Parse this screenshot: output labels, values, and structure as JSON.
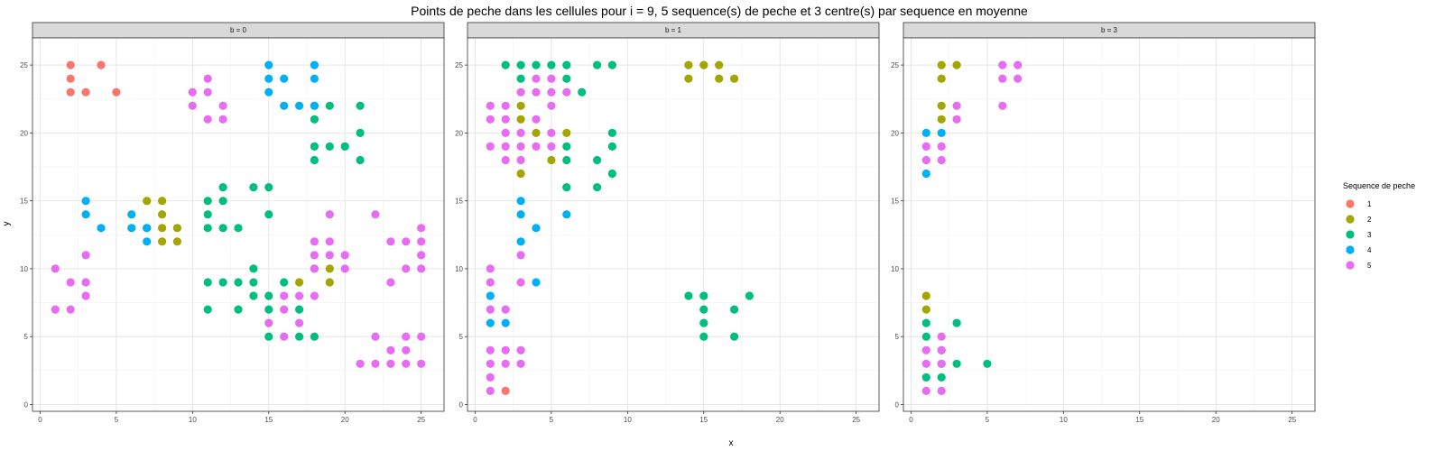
{
  "chart_data": {
    "type": "scatter",
    "title": "Points de peche dans les cellules pour i = 9, 5 sequence(s) de peche et 3 centre(s) par sequence en moyenne",
    "xlabel": "x",
    "ylabel": "y",
    "xlim": [
      -0.5,
      26.5
    ],
    "ylim": [
      -0.5,
      27
    ],
    "xticks": [
      0,
      5,
      10,
      15,
      20,
      25
    ],
    "yticks": [
      0,
      5,
      10,
      15,
      20,
      25
    ],
    "grid": true,
    "legend": {
      "title": "Sequence de peche",
      "position": "right",
      "entries": [
        {
          "label": "1",
          "color": "#F8766D"
        },
        {
          "label": "2",
          "color": "#A3A500"
        },
        {
          "label": "3",
          "color": "#00BF7D"
        },
        {
          "label": "4",
          "color": "#00B0F6"
        },
        {
          "label": "5",
          "color": "#E76BF3"
        }
      ]
    },
    "facets": [
      {
        "label": "b = 0",
        "series": {
          "1": [
            [
              2,
              25
            ],
            [
              4,
              25
            ],
            [
              2,
              24
            ],
            [
              2,
              23
            ],
            [
              3,
              23
            ],
            [
              5,
              23
            ]
          ],
          "2": [
            [
              7,
              15
            ],
            [
              8,
              15
            ],
            [
              8,
              14
            ],
            [
              7,
              13
            ],
            [
              8,
              13
            ],
            [
              9,
              13
            ],
            [
              8,
              12
            ],
            [
              9,
              12
            ],
            [
              17,
              9
            ],
            [
              19,
              10
            ],
            [
              18,
              10
            ],
            [
              19,
              9
            ]
          ],
          "3": [
            [
              18,
              22
            ],
            [
              19,
              22
            ],
            [
              21,
              22
            ],
            [
              18,
              21
            ],
            [
              21,
              20
            ],
            [
              18,
              19
            ],
            [
              19,
              19
            ],
            [
              20,
              19
            ],
            [
              18,
              18
            ],
            [
              21,
              18
            ],
            [
              12,
              16
            ],
            [
              14,
              16
            ],
            [
              15,
              16
            ],
            [
              11,
              15
            ],
            [
              12,
              15
            ],
            [
              11,
              14
            ],
            [
              15,
              14
            ],
            [
              11,
              13
            ],
            [
              12,
              13
            ],
            [
              13,
              13
            ],
            [
              14,
              10
            ],
            [
              11,
              9
            ],
            [
              12,
              9
            ],
            [
              13,
              9
            ],
            [
              14,
              9
            ],
            [
              16,
              9
            ],
            [
              14,
              8
            ],
            [
              15,
              8
            ],
            [
              11,
              7
            ],
            [
              13,
              7
            ],
            [
              15,
              7
            ],
            [
              17,
              7
            ],
            [
              15,
              5
            ],
            [
              17,
              5
            ],
            [
              18,
              5
            ]
          ],
          "4": [
            [
              15,
              25
            ],
            [
              18,
              25
            ],
            [
              15,
              24
            ],
            [
              16,
              24
            ],
            [
              18,
              24
            ],
            [
              15,
              23
            ],
            [
              16,
              22
            ],
            [
              17,
              22
            ],
            [
              18,
              22
            ],
            [
              3,
              15
            ],
            [
              3,
              14
            ],
            [
              4,
              13
            ],
            [
              6,
              14
            ],
            [
              6,
              13
            ],
            [
              7,
              13
            ],
            [
              7,
              12
            ]
          ],
          "5": [
            [
              11,
              24
            ],
            [
              10,
              23
            ],
            [
              11,
              23
            ],
            [
              10,
              22
            ],
            [
              12,
              22
            ],
            [
              11,
              21
            ],
            [
              12,
              21
            ],
            [
              19,
              14
            ],
            [
              22,
              14
            ],
            [
              25,
              13
            ],
            [
              18,
              12
            ],
            [
              19,
              12
            ],
            [
              23,
              12
            ],
            [
              24,
              12
            ],
            [
              25,
              12
            ],
            [
              18,
              11
            ],
            [
              19,
              11
            ],
            [
              20,
              11
            ],
            [
              25,
              11
            ],
            [
              3,
              11
            ],
            [
              1,
              10
            ],
            [
              18,
              10
            ],
            [
              20,
              10
            ],
            [
              24,
              10
            ],
            [
              25,
              10
            ],
            [
              2,
              9
            ],
            [
              3,
              9
            ],
            [
              23,
              9
            ],
            [
              3,
              8
            ],
            [
              16,
              8
            ],
            [
              17,
              8
            ],
            [
              18,
              8
            ],
            [
              1,
              7
            ],
            [
              2,
              7
            ],
            [
              16,
              7
            ],
            [
              17,
              6
            ],
            [
              15,
              6
            ],
            [
              16,
              5
            ],
            [
              22,
              5
            ],
            [
              24,
              5
            ],
            [
              25,
              5
            ],
            [
              23,
              4
            ],
            [
              24,
              4
            ],
            [
              21,
              3
            ],
            [
              22,
              3
            ],
            [
              23,
              3
            ],
            [
              24,
              3
            ],
            [
              25,
              3
            ]
          ]
        }
      },
      {
        "label": "b = 1",
        "series": {
          "1": [
            [
              2,
              1
            ]
          ],
          "2": [
            [
              14,
              25
            ],
            [
              15,
              25
            ],
            [
              16,
              25
            ],
            [
              14,
              24
            ],
            [
              16,
              24
            ],
            [
              17,
              24
            ],
            [
              3,
              22
            ],
            [
              3,
              21
            ],
            [
              4,
              20
            ],
            [
              6,
              20
            ],
            [
              5,
              18
            ],
            [
              3,
              17
            ]
          ],
          "3": [
            [
              2,
              25
            ],
            [
              3,
              25
            ],
            [
              4,
              25
            ],
            [
              5,
              25
            ],
            [
              6,
              25
            ],
            [
              8,
              25
            ],
            [
              9,
              25
            ],
            [
              3,
              24
            ],
            [
              6,
              24
            ],
            [
              7,
              23
            ],
            [
              9,
              20
            ],
            [
              6,
              19
            ],
            [
              9,
              19
            ],
            [
              6,
              18
            ],
            [
              8,
              18
            ],
            [
              9,
              17
            ],
            [
              6,
              16
            ],
            [
              8,
              16
            ],
            [
              14,
              8
            ],
            [
              15,
              8
            ],
            [
              18,
              8
            ],
            [
              15,
              7
            ],
            [
              17,
              7
            ],
            [
              15,
              6
            ],
            [
              15,
              5
            ],
            [
              17,
              5
            ]
          ],
          "4": [
            [
              3,
              15
            ],
            [
              3,
              14
            ],
            [
              6,
              14
            ],
            [
              4,
              13
            ],
            [
              3,
              12
            ],
            [
              4,
              9
            ],
            [
              1,
              8
            ],
            [
              1,
              6
            ],
            [
              2,
              6
            ]
          ],
          "5": [
            [
              4,
              24
            ],
            [
              5,
              24
            ],
            [
              4,
              23
            ],
            [
              5,
              23
            ],
            [
              6,
              23
            ],
            [
              3,
              23
            ],
            [
              1,
              22
            ],
            [
              2,
              22
            ],
            [
              5,
              22
            ],
            [
              1,
              21
            ],
            [
              2,
              21
            ],
            [
              4,
              21
            ],
            [
              2,
              20
            ],
            [
              3,
              20
            ],
            [
              5,
              20
            ],
            [
              1,
              19
            ],
            [
              2,
              19
            ],
            [
              3,
              19
            ],
            [
              4,
              19
            ],
            [
              5,
              19
            ],
            [
              2,
              18
            ],
            [
              3,
              18
            ],
            [
              3,
              11
            ],
            [
              1,
              10
            ],
            [
              1,
              9
            ],
            [
              3,
              9
            ],
            [
              1,
              7
            ],
            [
              2,
              7
            ],
            [
              1,
              4
            ],
            [
              2,
              4
            ],
            [
              3,
              4
            ],
            [
              1,
              3
            ],
            [
              2,
              3
            ],
            [
              3,
              3
            ],
            [
              1,
              2
            ],
            [
              1,
              1
            ]
          ]
        }
      },
      {
        "label": "b = 3",
        "series": {
          "1": [],
          "2": [
            [
              2,
              25
            ],
            [
              3,
              25
            ],
            [
              2,
              24
            ],
            [
              2,
              22
            ],
            [
              2,
              21
            ],
            [
              1,
              8
            ],
            [
              1,
              7
            ]
          ],
          "3": [
            [
              1,
              6
            ],
            [
              3,
              6
            ],
            [
              1,
              5
            ],
            [
              2,
              4
            ],
            [
              2,
              3
            ],
            [
              3,
              3
            ],
            [
              5,
              3
            ],
            [
              1,
              2
            ],
            [
              2,
              2
            ]
          ],
          "4": [
            [
              1,
              20
            ],
            [
              2,
              20
            ],
            [
              1,
              17
            ]
          ],
          "5": [
            [
              6,
              25
            ],
            [
              7,
              25
            ],
            [
              6,
              24
            ],
            [
              7,
              24
            ],
            [
              3,
              22
            ],
            [
              6,
              22
            ],
            [
              3,
              21
            ],
            [
              1,
              19
            ],
            [
              2,
              19
            ],
            [
              1,
              18
            ],
            [
              2,
              18
            ],
            [
              2,
              5
            ],
            [
              1,
              4
            ],
            [
              2,
              4
            ],
            [
              1,
              3
            ],
            [
              2,
              3
            ],
            [
              1,
              1
            ],
            [
              2,
              1
            ]
          ]
        }
      }
    ]
  }
}
